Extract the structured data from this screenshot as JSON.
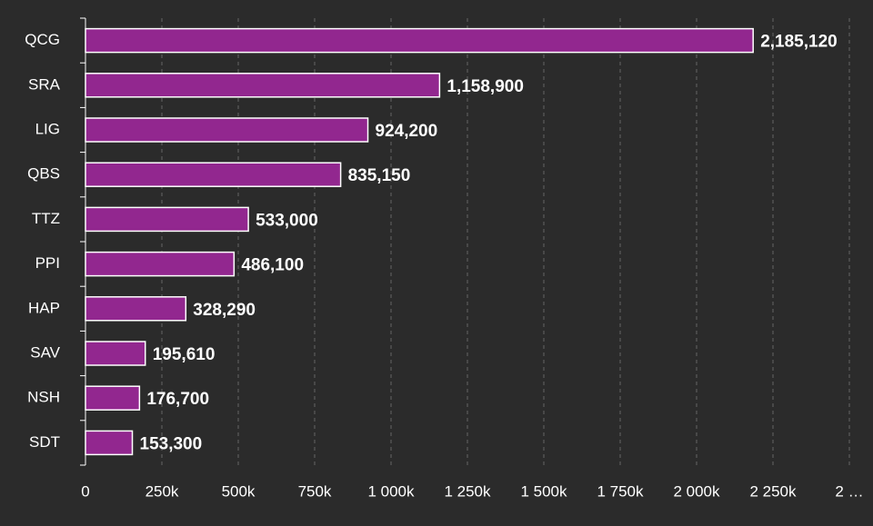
{
  "chart_data": {
    "type": "bar",
    "orientation": "horizontal",
    "categories": [
      "QCG",
      "SRA",
      "LIG",
      "QBS",
      "TTZ",
      "PPI",
      "HAP",
      "SAV",
      "NSH",
      "SDT"
    ],
    "values": [
      2185120,
      1158900,
      924200,
      835150,
      533000,
      486100,
      328290,
      195610,
      176700,
      153300
    ],
    "value_labels": [
      "2,185,120",
      "1,158,900",
      "924,200",
      "835,150",
      "533,000",
      "486,100",
      "328,290",
      "195,610",
      "176,700",
      "153,300"
    ],
    "color": "#92278f",
    "xlim": [
      0,
      2500000
    ],
    "xticks": [
      0,
      {
        "value": 250000,
        "label": "250k"
      },
      {
        "value": 500000,
        "label": "500k"
      },
      {
        "value": 750000,
        "label": "750k"
      },
      {
        "value": 1000000,
        "label": "1 000k"
      },
      {
        "value": 1250000,
        "label": "1 250k"
      },
      {
        "value": 1500000,
        "label": "1 500k"
      },
      {
        "value": 1750000,
        "label": "1 750k"
      },
      {
        "value": 2000000,
        "label": "2 000k"
      },
      {
        "value": 2250000,
        "label": "2 250k"
      },
      {
        "value": 2500000,
        "label": "2 …"
      }
    ],
    "grid": true
  }
}
